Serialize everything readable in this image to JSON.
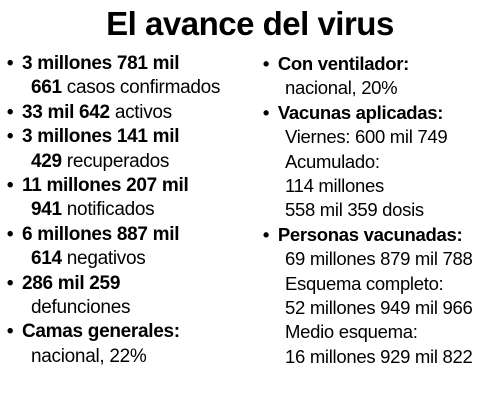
{
  "title": "El avance del virus",
  "left": {
    "confirmados": {
      "bold1": "3 millones 781 mil",
      "bold2": "661",
      "text2": " casos confirmados"
    },
    "activos": {
      "bold": "33 mil 642",
      "text": " activos"
    },
    "recuperados": {
      "bold1": "3 millones 141 mil",
      "bold2": "429",
      "text2": " recuperados"
    },
    "notificados": {
      "bold1": "11 millones 207 mil",
      "bold2": "941",
      "text2": " notificados"
    },
    "negativos": {
      "bold1": "6 millones 887 mil",
      "bold2": "614",
      "text2": " negativos"
    },
    "defunciones": {
      "bold1": "286 mil 259",
      "text2": "defunciones"
    },
    "camas": {
      "label": "Camas generales:",
      "value": "nacional, 22%"
    }
  },
  "right": {
    "ventilador": {
      "label": "Con ventilador:",
      "value": "nacional, 20%"
    },
    "vacunas": {
      "label": "Vacunas aplicadas:",
      "viernes": "Viernes: 600 mil 749",
      "acumulado_label": "Acumulado:",
      "acumulado_1": "114 millones",
      "acumulado_2": "558 mil 359 dosis"
    },
    "personas": {
      "label": "Personas vacunadas:",
      "total": "69 millones 879 mil 788",
      "completo_label": "Esquema completo:",
      "completo_value": "52 millones 949 mil 966",
      "medio_label": "Medio esquema:",
      "medio_value": "16 millones 929 mil 822"
    }
  },
  "bullet_char": "•"
}
